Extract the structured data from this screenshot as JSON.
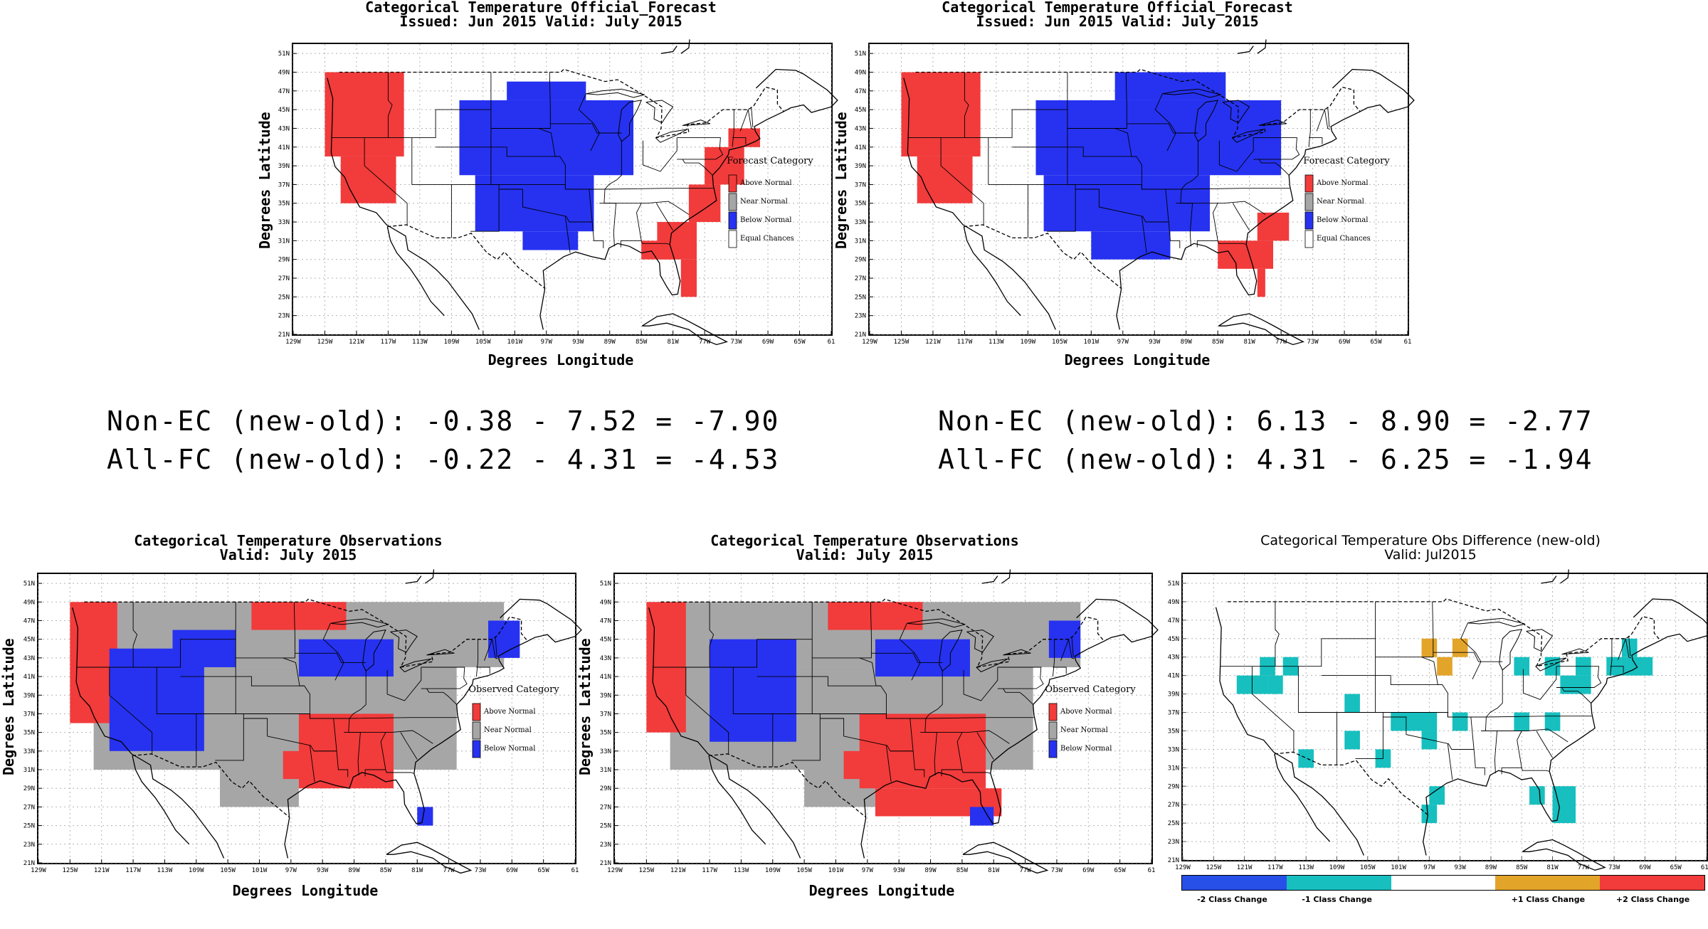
{
  "colors": {
    "above": "#f23b3b",
    "near": "#a6a6a6",
    "below": "#2632f0",
    "equal": "#ffffff",
    "minus2": "#2750e8",
    "minus1": "#17bfbf",
    "zero": "#ffffff",
    "plus1": "#e3a42a",
    "plus2": "#f23b3b"
  },
  "axis": {
    "lat_ticks": [
      "51N",
      "49N",
      "47N",
      "45N",
      "43N",
      "41N",
      "39N",
      "37N",
      "35N",
      "33N",
      "31N",
      "29N",
      "27N",
      "25N",
      "23N",
      "21N"
    ],
    "lon_ticks": [
      "129W",
      "125W",
      "121W",
      "117W",
      "113W",
      "109W",
      "105W",
      "101W",
      "97W",
      "93W",
      "89W",
      "85W",
      "81W",
      "77W",
      "73W",
      "69W",
      "65W",
      "61"
    ],
    "lon_ticks_diff": [
      "129W",
      "125W",
      "121W",
      "117W",
      "113W",
      "109W",
      "105W",
      "101W",
      "97W",
      "93W",
      "89W",
      "85W",
      "81W",
      "77W",
      "73W",
      "69W",
      "65W",
      "61W"
    ]
  },
  "panels": [
    {
      "id": "forecast_old",
      "title1": "Categorical Temperature Official_Forecast",
      "title2": "Issued: Jun 2015 Valid: July 2015",
      "xlabel": "Degrees Longitude",
      "ylabel": "Degrees Latitude",
      "legend_title": "Forecast Category",
      "legend": [
        {
          "label": "Above Normal",
          "cat": "above"
        },
        {
          "label": "Near Normal",
          "cat": "near"
        },
        {
          "label": "Below Normal",
          "cat": "below"
        },
        {
          "label": "Equal Chances",
          "cat": "equal"
        }
      ],
      "regions": [
        {
          "cat": "above",
          "cells": [
            [
              -125,
              49,
              -115,
              40
            ],
            [
              -123,
              40,
              -116,
              35
            ]
          ]
        },
        {
          "cat": "below",
          "cells": [
            [
              -108,
              46,
              -86,
              38
            ],
            [
              -102,
              48,
              -92,
              46
            ],
            [
              -106,
              38,
              -91,
              32
            ],
            [
              -100,
              32,
              -93,
              30
            ]
          ]
        },
        {
          "cat": "above",
          "cells": [
            [
              -83,
              33,
              -78,
              29
            ],
            [
              -79,
              37,
              -75,
              33
            ],
            [
              -77,
              41,
              -72,
              37
            ],
            [
              -74,
              43,
              -70,
              41
            ],
            [
              -85,
              31,
              -81,
              29
            ],
            [
              -80,
              29,
              -78,
              25
            ]
          ]
        }
      ]
    },
    {
      "id": "forecast_new",
      "title1": "Categorical Temperature Official_Forecast",
      "title2": "Issued: Jun 2015 Valid: July 2015",
      "xlabel": "Degrees Longitude",
      "ylabel": "Degrees Latitude",
      "legend_title": "Forecast Category",
      "legend": [
        {
          "label": "Above Normal",
          "cat": "above"
        },
        {
          "label": "Near Normal",
          "cat": "near"
        },
        {
          "label": "Below Normal",
          "cat": "below"
        },
        {
          "label": "Equal Chances",
          "cat": "equal"
        }
      ],
      "regions": [
        {
          "cat": "above",
          "cells": [
            [
              -125,
              49,
              -115,
              40
            ],
            [
              -123,
              40,
              -116,
              35
            ]
          ]
        },
        {
          "cat": "below",
          "cells": [
            [
              -108,
              46,
              -77,
              38
            ],
            [
              -98,
              49,
              -84,
              46
            ],
            [
              -107,
              38,
              -86,
              32
            ],
            [
              -101,
              32,
              -91,
              29
            ]
          ]
        },
        {
          "cat": "above",
          "cells": [
            [
              -85,
              31,
              -78,
              28
            ],
            [
              -80,
              28,
              -79,
              25
            ],
            [
              -80,
              34,
              -76,
              31
            ]
          ]
        }
      ]
    },
    {
      "id": "obs_old",
      "title1": "Categorical Temperature Observations",
      "title2": "Valid: July 2015",
      "xlabel": "Degrees Longitude",
      "ylabel": "Degrees Latitude",
      "legend_title": "Observed Category",
      "legend": [
        {
          "label": "Above Normal",
          "cat": "above"
        },
        {
          "label": "Near Normal",
          "cat": "near"
        },
        {
          "label": "Below Normal",
          "cat": "below"
        }
      ],
      "regions": [
        {
          "cat": "near",
          "cells": [
            [
              -119,
              49,
              -70,
              42
            ],
            [
              -122,
              42,
              -76,
              31
            ],
            [
              -106,
              31,
              -96,
              27
            ]
          ]
        },
        {
          "cat": "above",
          "cells": [
            [
              -125,
              49,
              -119,
              36
            ],
            [
              -120,
              36,
              -117,
              34
            ],
            [
              -102,
              49,
              -90,
              46
            ],
            [
              -96,
              37,
              -84,
              29
            ],
            [
              -98,
              33,
              -95,
              30
            ]
          ]
        },
        {
          "cat": "below",
          "cells": [
            [
              -120,
              44,
              -108,
              33
            ],
            [
              -112,
              46,
              -104,
              42
            ],
            [
              -96,
              45,
              -84,
              41
            ],
            [
              -72,
              47,
              -68,
              43
            ],
            [
              -81,
              27,
              -79,
              25
            ]
          ]
        }
      ]
    },
    {
      "id": "obs_new",
      "title1": "Categorical Temperature Observations",
      "title2": "Valid: July 2015",
      "xlabel": "Degrees Longitude",
      "ylabel": "Degrees Latitude",
      "legend_title": "Observed Category",
      "legend": [
        {
          "label": "Above Normal",
          "cat": "above"
        },
        {
          "label": "Near Normal",
          "cat": "near"
        },
        {
          "label": "Below Normal",
          "cat": "below"
        }
      ],
      "regions": [
        {
          "cat": "near",
          "cells": [
            [
              -121,
              49,
              -70,
              42
            ],
            [
              -122,
              42,
              -76,
              31
            ],
            [
              -105,
              31,
              -96,
              27
            ]
          ]
        },
        {
          "cat": "above",
          "cells": [
            [
              -125,
              49,
              -120,
              35
            ],
            [
              -102,
              49,
              -90,
              46
            ],
            [
              -98,
              37,
              -82,
              29
            ],
            [
              -100,
              33,
              -96,
              30
            ],
            [
              -96,
              29,
              -80,
              26
            ]
          ]
        },
        {
          "cat": "below",
          "cells": [
            [
              -117,
              45,
              -106,
              34
            ],
            [
              -96,
              45,
              -84,
              41
            ],
            [
              -74,
              47,
              -70,
              43
            ],
            [
              -84,
              27,
              -81,
              25
            ]
          ]
        }
      ]
    },
    {
      "id": "obs_diff",
      "title1": "Categorical Temperature Obs Difference (new-old)",
      "title2": "Valid: Jul2015",
      "key": [
        {
          "label": "-2 Class Change",
          "cat": "minus2"
        },
        {
          "label": "-1 Class Change",
          "cat": "minus1"
        },
        {
          "label": "",
          "cat": "zero"
        },
        {
          "label": "+1 Class Change",
          "cat": "plus1"
        },
        {
          "label": "+2 Class Change",
          "cat": "plus2"
        }
      ],
      "regions": [
        {
          "cat": "minus1",
          "cells": [
            [
              -122,
              41,
              -118,
              39
            ],
            [
              -116,
              43,
              -114,
              41
            ],
            [
              -118,
              41,
              -116,
              39
            ],
            [
              -119,
              43,
              -117,
              41
            ],
            [
              -108,
              39,
              -106,
              37
            ],
            [
              -108,
              35,
              -106,
              33
            ],
            [
              -102,
              37,
              -96,
              35
            ],
            [
              -98,
              35,
              -96,
              33
            ],
            [
              -94,
              37,
              -92,
              35
            ],
            [
              -114,
              33,
              -112,
              31
            ],
            [
              -104,
              33,
              -102,
              31
            ],
            [
              -97,
              29,
              -95,
              27
            ],
            [
              -98,
              27,
              -96,
              25
            ],
            [
              -86,
              37,
              -84,
              35
            ],
            [
              -82,
              37,
              -80,
              35
            ],
            [
              -86,
              43,
              -84,
              41
            ],
            [
              -82,
              43,
              -80,
              41
            ],
            [
              -78,
              43,
              -76,
              41
            ],
            [
              -80,
              41,
              -76,
              39
            ],
            [
              -74,
              43,
              -72,
              41
            ],
            [
              -72,
              45,
              -70,
              43
            ],
            [
              -72,
              43,
              -68,
              41
            ],
            [
              -81,
              29,
              -78,
              25
            ],
            [
              -84,
              29,
              -82,
              27
            ]
          ]
        },
        {
          "cat": "plus1",
          "cells": [
            [
              -98,
              45,
              -96,
              43
            ],
            [
              -94,
              45,
              -92,
              43
            ],
            [
              -96,
              43,
              -94,
              41
            ]
          ]
        }
      ]
    }
  ],
  "stats": {
    "left_line1": "Non-EC (new-old): -0.38 - 7.52 = -7.90",
    "left_line2": "All-FC (new-old): -0.22 - 4.31 = -4.53",
    "right_line1": "Non-EC (new-old): 6.13 - 8.90 = -2.77",
    "right_line2": "All-FC (new-old): 4.31 - 6.25 = -1.94"
  }
}
